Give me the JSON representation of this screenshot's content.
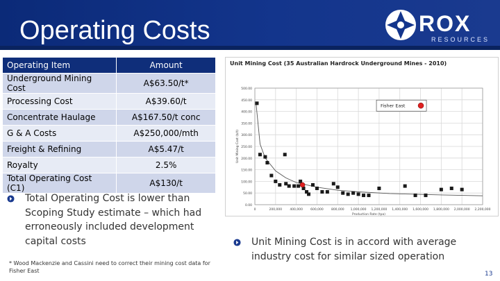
{
  "header": {
    "title": "Operating Costs",
    "logo_text": "ROX",
    "logo_subtext": "RESOURCES"
  },
  "table": {
    "headers": [
      "Operating Item",
      "Amount"
    ],
    "rows": [
      {
        "item": "Underground Mining Cost",
        "amount": "A$63.50/t*"
      },
      {
        "item": "Processing Cost",
        "amount": "A$39.60/t"
      },
      {
        "item": "Concentrate Haulage",
        "amount": "A$167.50/t conc"
      },
      {
        "item": "G & A Costs",
        "amount": "A$250,000/mth"
      },
      {
        "item": "Freight & Refining",
        "amount": "A$5.47/t"
      },
      {
        "item": "Royalty",
        "amount": "2.5%"
      },
      {
        "item": "Total Operating Cost (C1)",
        "amount": "A$130/t"
      }
    ]
  },
  "bullets": {
    "left": "Total Operating Cost is lower than Scoping Study estimate – which had erroneously included development capital costs",
    "right": "Unit Mining Cost is in accord with average industry cost for similar sized operation"
  },
  "footnote": "* Wood Mackenzie and Cassini need to correct their mining cost data for Fisher East",
  "page_number": "13",
  "colors": {
    "header_blue": "#13358c",
    "table_header": "#0f2e7a",
    "row_odd": "#cfd6ea",
    "row_even": "#e7ebf5",
    "point": "#1a1a1a",
    "highlight": "#e02020"
  },
  "chart_data": {
    "type": "scatter",
    "title": "Unit Mining Cost (35 Australian Hardrock Underground Mines - 2010)",
    "xlabel": "Production Rate (tpa)",
    "ylabel": "Unit Mining Cost ($/t)",
    "xlim": [
      0,
      2200000
    ],
    "ylim": [
      0,
      500
    ],
    "x_ticks": [
      0,
      200000,
      400000,
      600000,
      800000,
      1000000,
      1200000,
      1400000,
      1600000,
      1800000,
      2000000,
      2200000
    ],
    "x_tick_labels": [
      "0",
      "200,000",
      "400,000",
      "600,000",
      "800,000",
      "1,000,000",
      "1,200,000",
      "1,400,000",
      "1,600,000",
      "1,800,000",
      "2,000,000",
      "2,200,000"
    ],
    "y_ticks": [
      0,
      50,
      100,
      150,
      200,
      250,
      300,
      350,
      400,
      450,
      500
    ],
    "y_tick_labels": [
      "0.00",
      "50.00",
      "100.00",
      "150.00",
      "200.00",
      "250.00",
      "300.00",
      "350.00",
      "400.00",
      "450.00",
      "500.00"
    ],
    "grid": true,
    "points": [
      {
        "x": 20000,
        "y": 435
      },
      {
        "x": 50000,
        "y": 215
      },
      {
        "x": 100000,
        "y": 205
      },
      {
        "x": 120000,
        "y": 180
      },
      {
        "x": 160000,
        "y": 125
      },
      {
        "x": 200000,
        "y": 100
      },
      {
        "x": 240000,
        "y": 85
      },
      {
        "x": 290000,
        "y": 215
      },
      {
        "x": 300000,
        "y": 90
      },
      {
        "x": 330000,
        "y": 80
      },
      {
        "x": 380000,
        "y": 80
      },
      {
        "x": 420000,
        "y": 80
      },
      {
        "x": 440000,
        "y": 100
      },
      {
        "x": 470000,
        "y": 70
      },
      {
        "x": 500000,
        "y": 55
      },
      {
        "x": 520000,
        "y": 45
      },
      {
        "x": 560000,
        "y": 85
      },
      {
        "x": 600000,
        "y": 70
      },
      {
        "x": 650000,
        "y": 55
      },
      {
        "x": 700000,
        "y": 55
      },
      {
        "x": 760000,
        "y": 90
      },
      {
        "x": 800000,
        "y": 75
      },
      {
        "x": 850000,
        "y": 50
      },
      {
        "x": 900000,
        "y": 45
      },
      {
        "x": 950000,
        "y": 50
      },
      {
        "x": 1000000,
        "y": 45
      },
      {
        "x": 1050000,
        "y": 40
      },
      {
        "x": 1100000,
        "y": 40
      },
      {
        "x": 1200000,
        "y": 70
      },
      {
        "x": 1450000,
        "y": 80
      },
      {
        "x": 1550000,
        "y": 40
      },
      {
        "x": 1650000,
        "y": 40
      },
      {
        "x": 1800000,
        "y": 65
      },
      {
        "x": 1900000,
        "y": 70
      },
      {
        "x": 2000000,
        "y": 65
      }
    ],
    "trend": [
      [
        10000,
        440
      ],
      [
        50000,
        260
      ],
      [
        100000,
        200
      ],
      [
        200000,
        145
      ],
      [
        300000,
        115
      ],
      [
        400000,
        95
      ],
      [
        600000,
        75
      ],
      [
        800000,
        62
      ],
      [
        1000000,
        55
      ],
      [
        1300000,
        48
      ],
      [
        1600000,
        44
      ],
      [
        2000000,
        40
      ],
      [
        2200000,
        38
      ]
    ],
    "highlight": {
      "x": 1590000,
      "y": 425,
      "label": "Fisher East"
    },
    "highlight_bottom": {
      "x": 460000,
      "y": 85
    }
  }
}
